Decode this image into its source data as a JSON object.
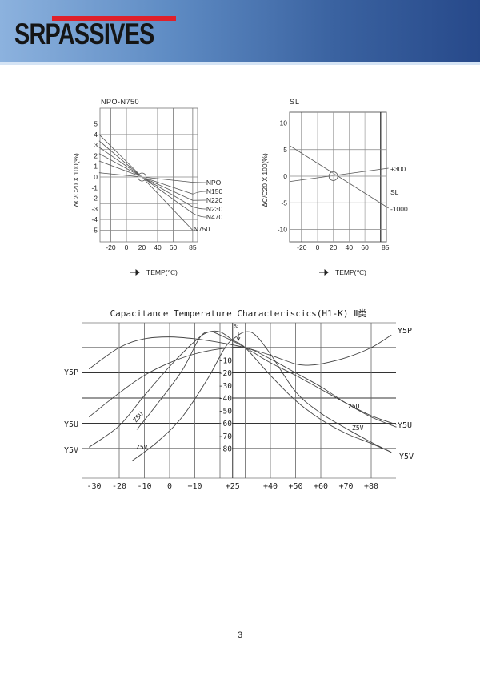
{
  "header": {
    "logo_text": "SRPASSIVES",
    "brand_colors": {
      "bar": "#e0202a",
      "gradient_start": "#8cb2de",
      "gradient_end": "#27498a"
    }
  },
  "page_number": "3",
  "chart_data": [
    {
      "type": "line",
      "title": "NPO-N750",
      "ylabel": "ΔC/C20 X 100(%)",
      "xlabel": "TEMP(℃)",
      "x_ticks": [
        "-20",
        "0",
        "20",
        "40",
        "60",
        "85"
      ],
      "y_ticks": [
        "5",
        "4",
        "3",
        "2",
        "1",
        "0",
        "-1",
        "-2",
        "-3",
        "-4",
        "-5"
      ],
      "xlim": [
        -35,
        92
      ],
      "ylim": [
        -6.1,
        6.5
      ],
      "grid": true,
      "series": [
        {
          "name": "NPO",
          "x": [
            -35,
            20,
            85
          ],
          "y": [
            0.4,
            0,
            -0.5
          ]
        },
        {
          "name": "N150",
          "x": [
            -35,
            20,
            85
          ],
          "y": [
            1.5,
            0,
            -1.6
          ]
        },
        {
          "name": "N220",
          "x": [
            -35,
            20,
            85
          ],
          "y": [
            2.2,
            0,
            -2.2
          ]
        },
        {
          "name": "N230",
          "x": [
            -35,
            20,
            85
          ],
          "y": [
            2.8,
            0,
            -2.8
          ]
        },
        {
          "name": "N470",
          "x": [
            -35,
            20,
            85
          ],
          "y": [
            3.4,
            0,
            -3.4
          ]
        },
        {
          "name": "N750",
          "x": [
            -35,
            20,
            85
          ],
          "y": [
            4.0,
            0,
            -5.0
          ]
        }
      ]
    },
    {
      "type": "line",
      "title": "SL",
      "ylabel": "ΔC/C20 X 100(%)",
      "xlabel": "TEMP(℃)",
      "x_ticks": [
        "-20",
        "0",
        "20",
        "40",
        "60",
        "85"
      ],
      "y_ticks": [
        "10",
        "5",
        "0",
        "-5",
        "-10"
      ],
      "xlim": [
        -36,
        92
      ],
      "ylim": [
        -12.3,
        12
      ],
      "grid": true,
      "series": [
        {
          "name": "+300",
          "x": [
            -35,
            90
          ],
          "y": [
            -1.0,
            1.5
          ]
        },
        {
          "name": "-1000",
          "x": [
            -35,
            90
          ],
          "y": [
            5.7,
            -6.0
          ]
        }
      ],
      "annotations": [
        "SL"
      ]
    },
    {
      "type": "line",
      "title": "Capacitance Temperature Characteriscics(H1-K) Ⅱ类",
      "x_ticks": [
        "-30",
        "-20",
        "-10",
        "0",
        "+10",
        "+25",
        "+40",
        "+50",
        "+60",
        "+70",
        "+80"
      ],
      "y_ticks": [
        "-10",
        "-20",
        "-30",
        "-40",
        "-50",
        "-60",
        "-70",
        "-80"
      ],
      "y_unit": "%",
      "xlim": [
        -34,
        90
      ],
      "ylim": [
        -102,
        20
      ],
      "grid": true,
      "series": [
        {
          "name": "Y5P",
          "x": [
            -32,
            -20,
            -10,
            0,
            10,
            20,
            30,
            40,
            50,
            55,
            60,
            70,
            80,
            88
          ],
          "y": [
            -17,
            0,
            7,
            8.5,
            7,
            4,
            0,
            -6,
            -13,
            -14,
            -13,
            -8,
            0,
            10
          ]
        },
        {
          "name": "Y5U",
          "x": [
            -32,
            -20,
            -10,
            0,
            10,
            20,
            30,
            40,
            50,
            60,
            70,
            80,
            90
          ],
          "y": [
            -55,
            -36,
            -22,
            -12,
            -5,
            -1,
            0,
            -9,
            -20,
            -31,
            -44,
            -55,
            -63
          ]
        },
        {
          "name": "Y5V",
          "x": [
            -32,
            -20,
            -10,
            0,
            10,
            15,
            20,
            25,
            30,
            40,
            50,
            60,
            70,
            80,
            88
          ],
          "y": [
            -79,
            -62,
            -38,
            -15,
            5,
            12,
            12.5,
            6,
            0,
            -22,
            -42,
            -57,
            -68,
            -76,
            -83
          ]
        },
        {
          "name": "Z5U",
          "x": [
            -13,
            -5,
            5,
            12,
            16,
            20,
            30,
            40,
            50,
            60,
            70,
            80,
            90
          ],
          "y": [
            -65,
            -45,
            -18,
            8,
            12.5,
            10,
            0,
            -12,
            -22,
            -33,
            -44,
            -54,
            -61
          ]
        },
        {
          "name": "Z5V",
          "x": [
            -15,
            -5,
            5,
            15,
            22,
            26,
            30,
            34,
            40,
            50,
            60,
            70,
            80,
            88
          ],
          "y": [
            -90,
            -75,
            -55,
            -25,
            0,
            8,
            12.5,
            10,
            -5,
            -35,
            -52,
            -64,
            -75,
            -83
          ]
        }
      ]
    }
  ]
}
